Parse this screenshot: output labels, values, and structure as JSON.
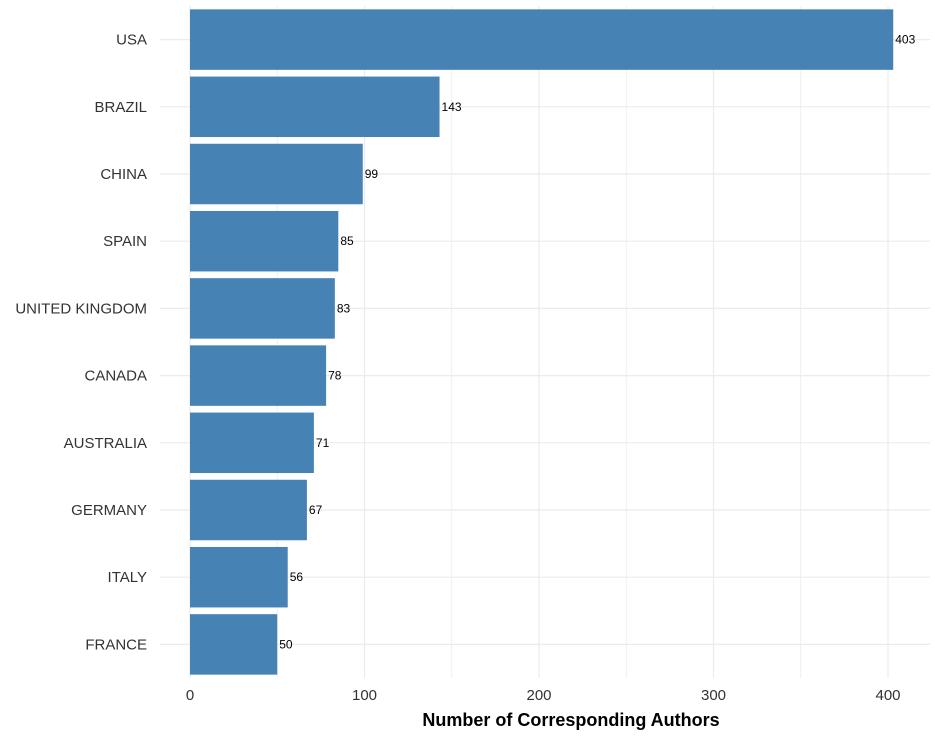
{
  "chart_data": {
    "type": "bar",
    "orientation": "horizontal",
    "categories": [
      "USA",
      "BRAZIL",
      "CHINA",
      "SPAIN",
      "UNITED KINGDOM",
      "CANADA",
      "AUSTRALIA",
      "GERMANY",
      "ITALY",
      "FRANCE"
    ],
    "values": [
      403,
      143,
      99,
      85,
      83,
      78,
      71,
      67,
      56,
      50
    ],
    "xlabel": "Number of Corresponding Authors",
    "ylabel": "",
    "xlim": [
      0,
      420
    ],
    "xticks": [
      0,
      100,
      200,
      300,
      400
    ],
    "grid": true,
    "bar_color": "#4682B4"
  }
}
